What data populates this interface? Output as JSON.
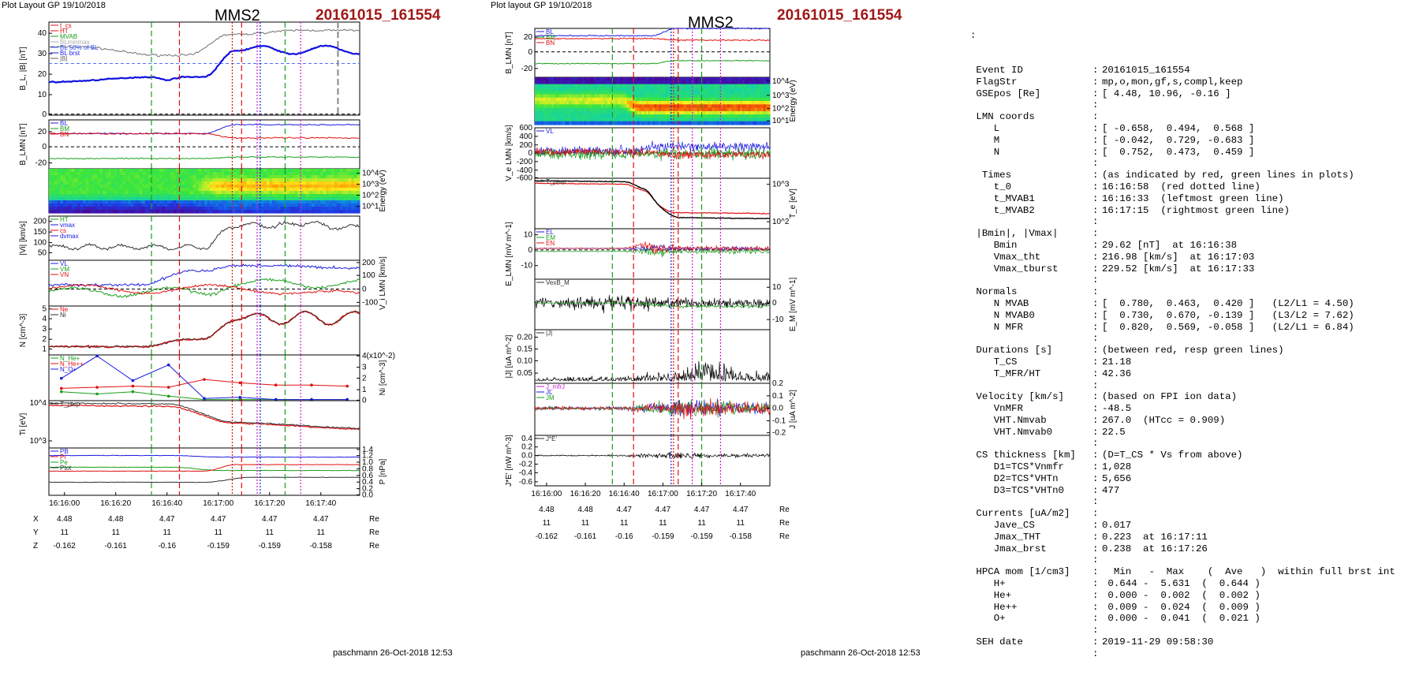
{
  "left_sheet": {
    "header": "Plot Layout GP 19/10/2018",
    "spacecraft": "MMS2",
    "event": "20161015_161554",
    "footer": "paschmann 26-Oct-2018 12:53",
    "x_ticks": [
      "16:16:00",
      "16:16:20",
      "16:16:40",
      "16:17:00",
      "16:17:20",
      "16:17:40"
    ],
    "pos_rows": [
      {
        "label": "X",
        "values": [
          "4.48",
          "4.48",
          "4.47",
          "4.47",
          "4.47",
          "4.47"
        ],
        "unit": "Re"
      },
      {
        "label": "Y",
        "values": [
          "11",
          "11",
          "11",
          "11",
          "11",
          "11"
        ],
        "unit": "Re"
      },
      {
        "label": "Z",
        "values": [
          "-0.162",
          "-0.161",
          "-0.16",
          "-0.159",
          "-0.159",
          "-0.158"
        ],
        "unit": "Re"
      }
    ],
    "panels": [
      {
        "id": "b",
        "ylabel": "B_L, |B| [nT]",
        "yticks": [
          "40",
          "30",
          "20",
          "10",
          "0"
        ],
        "legend": [
          "t_cs",
          "HT",
          "MVAB",
          "BLminmax",
          "BL 50% of BL",
          "BL brst",
          "|B|"
        ]
      },
      {
        "id": "blmn",
        "ylabel": "B_LMN [nT]",
        "yticks": [
          "20",
          "0",
          "-20"
        ],
        "legend": [
          "BL",
          "BM",
          "BN"
        ]
      },
      {
        "id": "ispec",
        "ylabel_right": "Energy (eV)",
        "yticks_right": [
          "10^4",
          "10^3",
          "10^2",
          "10^1"
        ]
      },
      {
        "id": "vi",
        "ylabel": "|Vi| [km/s]",
        "yticks": [
          "200",
          "150",
          "100",
          "50"
        ],
        "legend": [
          "HT",
          "vmax",
          "cs",
          "dvmax"
        ]
      },
      {
        "id": "vilmn",
        "ylabel_right": "V_i LMN [km/s]",
        "yticks_right": [
          "200",
          "100",
          "0",
          "-100"
        ],
        "legend": [
          "VL",
          "VM",
          "VN"
        ]
      },
      {
        "id": "n",
        "ylabel": "N [cm^-3]",
        "yticks": [
          "5",
          "4",
          "3",
          "2",
          "1"
        ],
        "legend": [
          "Ne",
          "Ni"
        ]
      },
      {
        "id": "ni",
        "ylabel_right": "Ni [cm^-3]",
        "yticks_right": [
          "4(x10^-2)",
          "3",
          "2",
          "1",
          "0"
        ],
        "legend": [
          "N_He+",
          "N_He++",
          "N_O+"
        ]
      },
      {
        "id": "ti",
        "ylabel": "Ti [eV]",
        "yticks": [
          "10^4",
          "10^3"
        ],
        "legend": [
          "T_perp"
        ]
      },
      {
        "id": "p",
        "ylabel_right": "P [nPa]",
        "yticks_right": [
          "1.4",
          "1.2",
          "1.0",
          "0.8",
          "0.6",
          "0.4",
          "0.2",
          "0.0"
        ],
        "legend": [
          "PB",
          "Pi",
          "Pe",
          "Ptot"
        ]
      }
    ]
  },
  "middle_sheet": {
    "header": "Plot layout GP 19/10/2018",
    "spacecraft": "MMS2",
    "event": "20161015_161554",
    "footer": "paschmann 26-Oct-2018 12:53",
    "x_ticks": [
      "16:16:00",
      "16:16:20",
      "16:16:40",
      "16:17:00",
      "16:17:20",
      "16:17:40"
    ],
    "pos_rows": [
      {
        "label": "X",
        "values": [
          "4.48",
          "4.48",
          "4.47",
          "4.47",
          "4.47",
          "4.47"
        ],
        "unit": "Re"
      },
      {
        "label": "Y",
        "values": [
          "11",
          "11",
          "11",
          "11",
          "11",
          "11"
        ],
        "unit": "Re"
      },
      {
        "label": "Z",
        "values": [
          "-0.162",
          "-0.161",
          "-0.16",
          "-0.159",
          "-0.159",
          "-0.158"
        ],
        "unit": "Re"
      }
    ],
    "panels": [
      {
        "id": "blmn",
        "ylabel": "B_LMN [nT]",
        "yticks": [
          "20",
          "0",
          "-20"
        ],
        "legend": [
          "BL",
          "BM",
          "BN"
        ]
      },
      {
        "id": "espec",
        "ylabel_right": "Energy (eV)",
        "yticks_right": [
          "10^4",
          "10^3",
          "10^2",
          "10^1"
        ]
      },
      {
        "id": "ve",
        "ylabel": "V_e LMN [km/s]",
        "yticks": [
          "600",
          "400",
          "200",
          "0",
          "-200",
          "-400",
          "-600"
        ],
        "legend": [
          "VL"
        ]
      },
      {
        "id": "te",
        "ylabel_right": "T_e [eV]",
        "yticks_right": [
          "10^3",
          "10^2"
        ],
        "legend": [
          "T_perp",
          "T_par"
        ]
      },
      {
        "id": "elmn",
        "ylabel": "E_LMN [mV m^-1]",
        "yticks": [
          "10",
          "0",
          "-10"
        ],
        "legend": [
          "EL",
          "EM",
          "EN"
        ]
      },
      {
        "id": "em",
        "ylabel_right": "E_M [mV m^-1]",
        "yticks_right": [
          "10",
          "0",
          "-10"
        ],
        "legend": [
          "VexB_M"
        ]
      },
      {
        "id": "j",
        "ylabel": "|J| [uA m^-2]",
        "yticks": [
          "0.20",
          "0.15",
          "0.10",
          "0.05"
        ],
        "legend": [
          "|J|"
        ]
      },
      {
        "id": "jlmn",
        "ylabel_right": "J [uA m^-2]",
        "yticks_right": [
          "0.2",
          "0.1",
          "0.0",
          "-0.1",
          "-0.2"
        ],
        "legend": [
          "J_mfrJ",
          "JL",
          "JM"
        ]
      },
      {
        "id": "je",
        "ylabel": "J*E' [nW m^-3]",
        "yticks": [
          "0.4",
          "0.2",
          "0.0",
          "-0.2",
          "-0.4",
          "-0.6"
        ],
        "legend": [
          "J*E'"
        ]
      }
    ]
  },
  "info": {
    "lead": ":",
    "rows": [
      {
        "k": "Event ID",
        "v": "20161015_161554"
      },
      {
        "k": "FlagStr",
        "v": "mp,o,mon,gf,s,compl,keep"
      },
      {
        "k": "GSEpos [Re]",
        "v": "[ 4.48, 10.96, -0.16 ]"
      },
      {
        "k": "",
        "v": ""
      },
      {
        "k": "LMN coords",
        "v": ""
      },
      {
        "k": "   L",
        "v": "[ -0.658,  0.494,  0.568 ]"
      },
      {
        "k": "   M",
        "v": "[ -0.042,  0.729, -0.683 ]"
      },
      {
        "k": "   N",
        "v": "[  0.752,  0.473,  0.459 ]"
      },
      {
        "k": "",
        "v": ""
      },
      {
        "k": " Times",
        "v": "(as indicated by red, green lines in plots)"
      },
      {
        "k": "   t_0",
        "v": "16:16:58  (red dotted line)"
      },
      {
        "k": "   t_MVAB1",
        "v": "16:16:33  (leftmost green line)"
      },
      {
        "k": "   t_MVAB2",
        "v": "16:17:15  (rightmost green line)"
      },
      {
        "k": "",
        "v": ""
      },
      {
        "k": "|Bmin|, |Vmax|",
        "v": ""
      },
      {
        "k": "   Bmin",
        "v": "29.62 [nT]  at 16:16:38"
      },
      {
        "k": "   Vmax_tht",
        "v": "216.98 [km/s]  at 16:17:03"
      },
      {
        "k": "   Vmax_tburst",
        "v": "229.52 [km/s]  at 16:17:33"
      },
      {
        "k": "",
        "v": ""
      },
      {
        "k": "Normals",
        "v": ""
      },
      {
        "k": "   N MVAB",
        "v": "[  0.780,  0.463,  0.420 ]   (L2/L1 = 4.50)"
      },
      {
        "k": "   N MVAB0",
        "v": "[  0.730,  0.670, -0.139 ]   (L3/L2 = 7.62)"
      },
      {
        "k": "   N MFR",
        "v": "[  0.820,  0.569, -0.058 ]   (L2/L1 = 6.84)"
      },
      {
        "k": "",
        "v": ""
      },
      {
        "k": "Durations [s]",
        "v": "(between red, resp green lines)"
      },
      {
        "k": "   T_CS",
        "v": "21.18"
      },
      {
        "k": "   T_MFR/HT",
        "v": "42.36"
      },
      {
        "k": "",
        "v": ""
      },
      {
        "k": "Velocity [km/s]",
        "v": "(based on FPI ion data)"
      },
      {
        "k": "   VnMFR",
        "v": "-48.5"
      },
      {
        "k": "   VHT.Nmvab",
        "v": "267.0  (HTcc = 0.909)"
      },
      {
        "k": "   VHT.Nmvab0",
        "v": "22.5"
      },
      {
        "k": "",
        "v": ""
      },
      {
        "k": "CS thickness [km]",
        "v": "(D=T_CS * Vs from above)"
      },
      {
        "k": "   D1=TCS*Vnmfr",
        "v": "1,028"
      },
      {
        "k": "   D2=TCS*VHTn",
        "v": "5,656"
      },
      {
        "k": "   D3=TCS*VHTn0",
        "v": "477"
      },
      {
        "k": "",
        "v": ""
      },
      {
        "k": "Currents [uA/m2]",
        "v": ""
      },
      {
        "k": "   Jave_CS",
        "v": "0.017"
      },
      {
        "k": "   Jmax_THT",
        "v": "0.223  at 16:17:11"
      },
      {
        "k": "   Jmax_brst",
        "v": "0.238  at 16:17:26"
      },
      {
        "k": "",
        "v": ""
      },
      {
        "k": "HPCA mom [1/cm3]",
        "v": "  Min   -  Max    (  Ave   )  within full brst int"
      },
      {
        "k": "   H+",
        "v": " 0.644 -  5.631  (  0.644 )"
      },
      {
        "k": "   He+",
        "v": " 0.000 -  0.002  (  0.002 )"
      },
      {
        "k": "   He++",
        "v": " 0.009 -  0.024  (  0.009 )"
      },
      {
        "k": "   O+",
        "v": " 0.000 -  0.041  (  0.021 )"
      },
      {
        "k": "",
        "v": ""
      },
      {
        "k": "SEH date",
        "v": "2019-11-29 09:58:30"
      },
      {
        "k": "",
        "v": ""
      }
    ]
  },
  "chart_data": [
    {
      "type": "line",
      "title": "MMS2 20161015_161554",
      "xlabel": "",
      "x_range": [
        "16:15:54",
        "16:17:54"
      ],
      "series": [
        {
          "name": "BL brst",
          "x": [
            "16:16:00",
            "16:16:20",
            "16:16:30",
            "16:16:38",
            "16:16:50",
            "16:17:00",
            "16:17:10",
            "16:17:20",
            "16:17:40",
            "16:17:54"
          ],
          "values": [
            16,
            17,
            18.5,
            17.5,
            20,
            30,
            33,
            33,
            34,
            31
          ]
        },
        {
          "name": "|B|",
          "x": [
            "16:16:00",
            "16:16:20",
            "16:16:35",
            "16:16:45",
            "16:17:00",
            "16:17:10",
            "16:17:30",
            "16:17:54"
          ],
          "values": [
            33,
            30,
            30,
            36,
            40,
            41,
            42,
            42
          ]
        }
      ],
      "ylabel": "B_L, |B| [nT]",
      "ylim": [
        0,
        45
      ]
    },
    {
      "type": "line",
      "series": [
        {
          "name": "N_He+",
          "values": [
            0.8,
            0.6,
            0.8,
            0.4,
            0.1,
            0.1,
            0.1,
            0.1,
            0.1
          ]
        },
        {
          "name": "N_He++",
          "values": [
            1.1,
            1.2,
            1.3,
            1.2,
            1.9,
            1.6,
            1.4,
            1.4,
            1.3
          ]
        },
        {
          "name": "N_O+",
          "values": [
            2.0,
            4.0,
            1.8,
            3.2,
            0.2,
            0.3,
            0.1,
            0.1,
            0.1
          ]
        }
      ],
      "ylabel": "Ni [cm^-3]",
      "ylim": [
        0,
        4
      ]
    }
  ]
}
